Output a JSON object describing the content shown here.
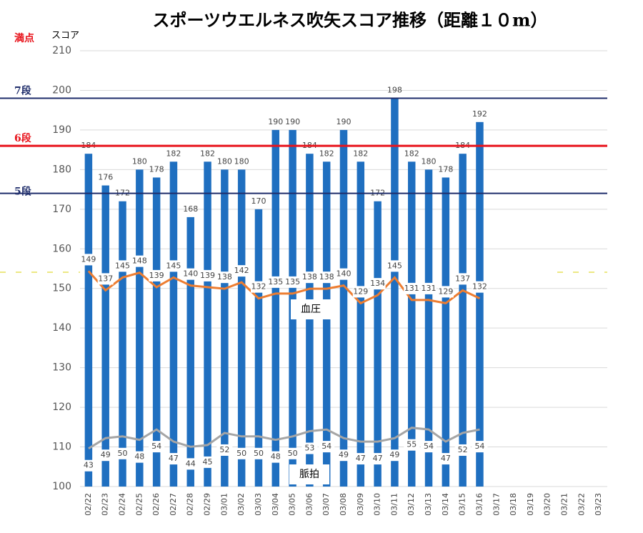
{
  "chart_data": {
    "type": "bar",
    "title": "スポーツウエルネス吹矢スコア推移（距離１０m）",
    "y_label": "スコア",
    "full_mark_label": "満点",
    "categories": [
      "02/22",
      "02/23",
      "02/24",
      "02/25",
      "02/26",
      "02/27",
      "02/28",
      "02/29",
      "03/01",
      "03/02",
      "03/03",
      "03/04",
      "03/05",
      "03/06",
      "03/07",
      "03/08",
      "03/09",
      "03/10",
      "03/11",
      "03/12",
      "03/13",
      "03/14",
      "03/15",
      "03/16",
      "03/17",
      "03/18",
      "03/19",
      "03/20",
      "03/21",
      "03/22",
      "03/23"
    ],
    "values": [
      184,
      176,
      172,
      180,
      178,
      182,
      168,
      182,
      180,
      180,
      170,
      190,
      190,
      184,
      182,
      190,
      182,
      172,
      198,
      182,
      180,
      178,
      184,
      192,
      null,
      null,
      null,
      null,
      null,
      null,
      null
    ],
    "color": "#1f6fc0",
    "ylim": [
      100,
      210
    ],
    "yticks": [
      100,
      110,
      120,
      130,
      140,
      150,
      160,
      170,
      180,
      190,
      200,
      210
    ],
    "grid": true,
    "y2lim": [
      15,
      286
    ],
    "y3lim": [
      21,
      273
    ],
    "lines": [
      {
        "name": "血圧",
        "color": "#ed7d31",
        "axis": "y2",
        "values": [
          149,
          137,
          145,
          148,
          139,
          145,
          140,
          139,
          138,
          142,
          132,
          135,
          135,
          138,
          138,
          140,
          129,
          134,
          145,
          131,
          131,
          129,
          137,
          132,
          null,
          null,
          null,
          null,
          null,
          null,
          null
        ]
      },
      {
        "name": "脈拍",
        "color": "#a5a5a5",
        "axis": "y3",
        "values": [
          43,
          49,
          50,
          48,
          54,
          47,
          44,
          45,
          52,
          50,
          50,
          48,
          50,
          53,
          54,
          49,
          47,
          47,
          49,
          55,
          54,
          47,
          52,
          54,
          null,
          null,
          null,
          null,
          null,
          null,
          null
        ]
      }
    ],
    "reference_lines": [
      {
        "label": "7段",
        "value": 198,
        "color": "#1f2d6b"
      },
      {
        "label": "6段",
        "value": 186,
        "color": "#e8141c"
      },
      {
        "label": "5段",
        "value": 174,
        "color": "#1f2d6b"
      }
    ]
  }
}
